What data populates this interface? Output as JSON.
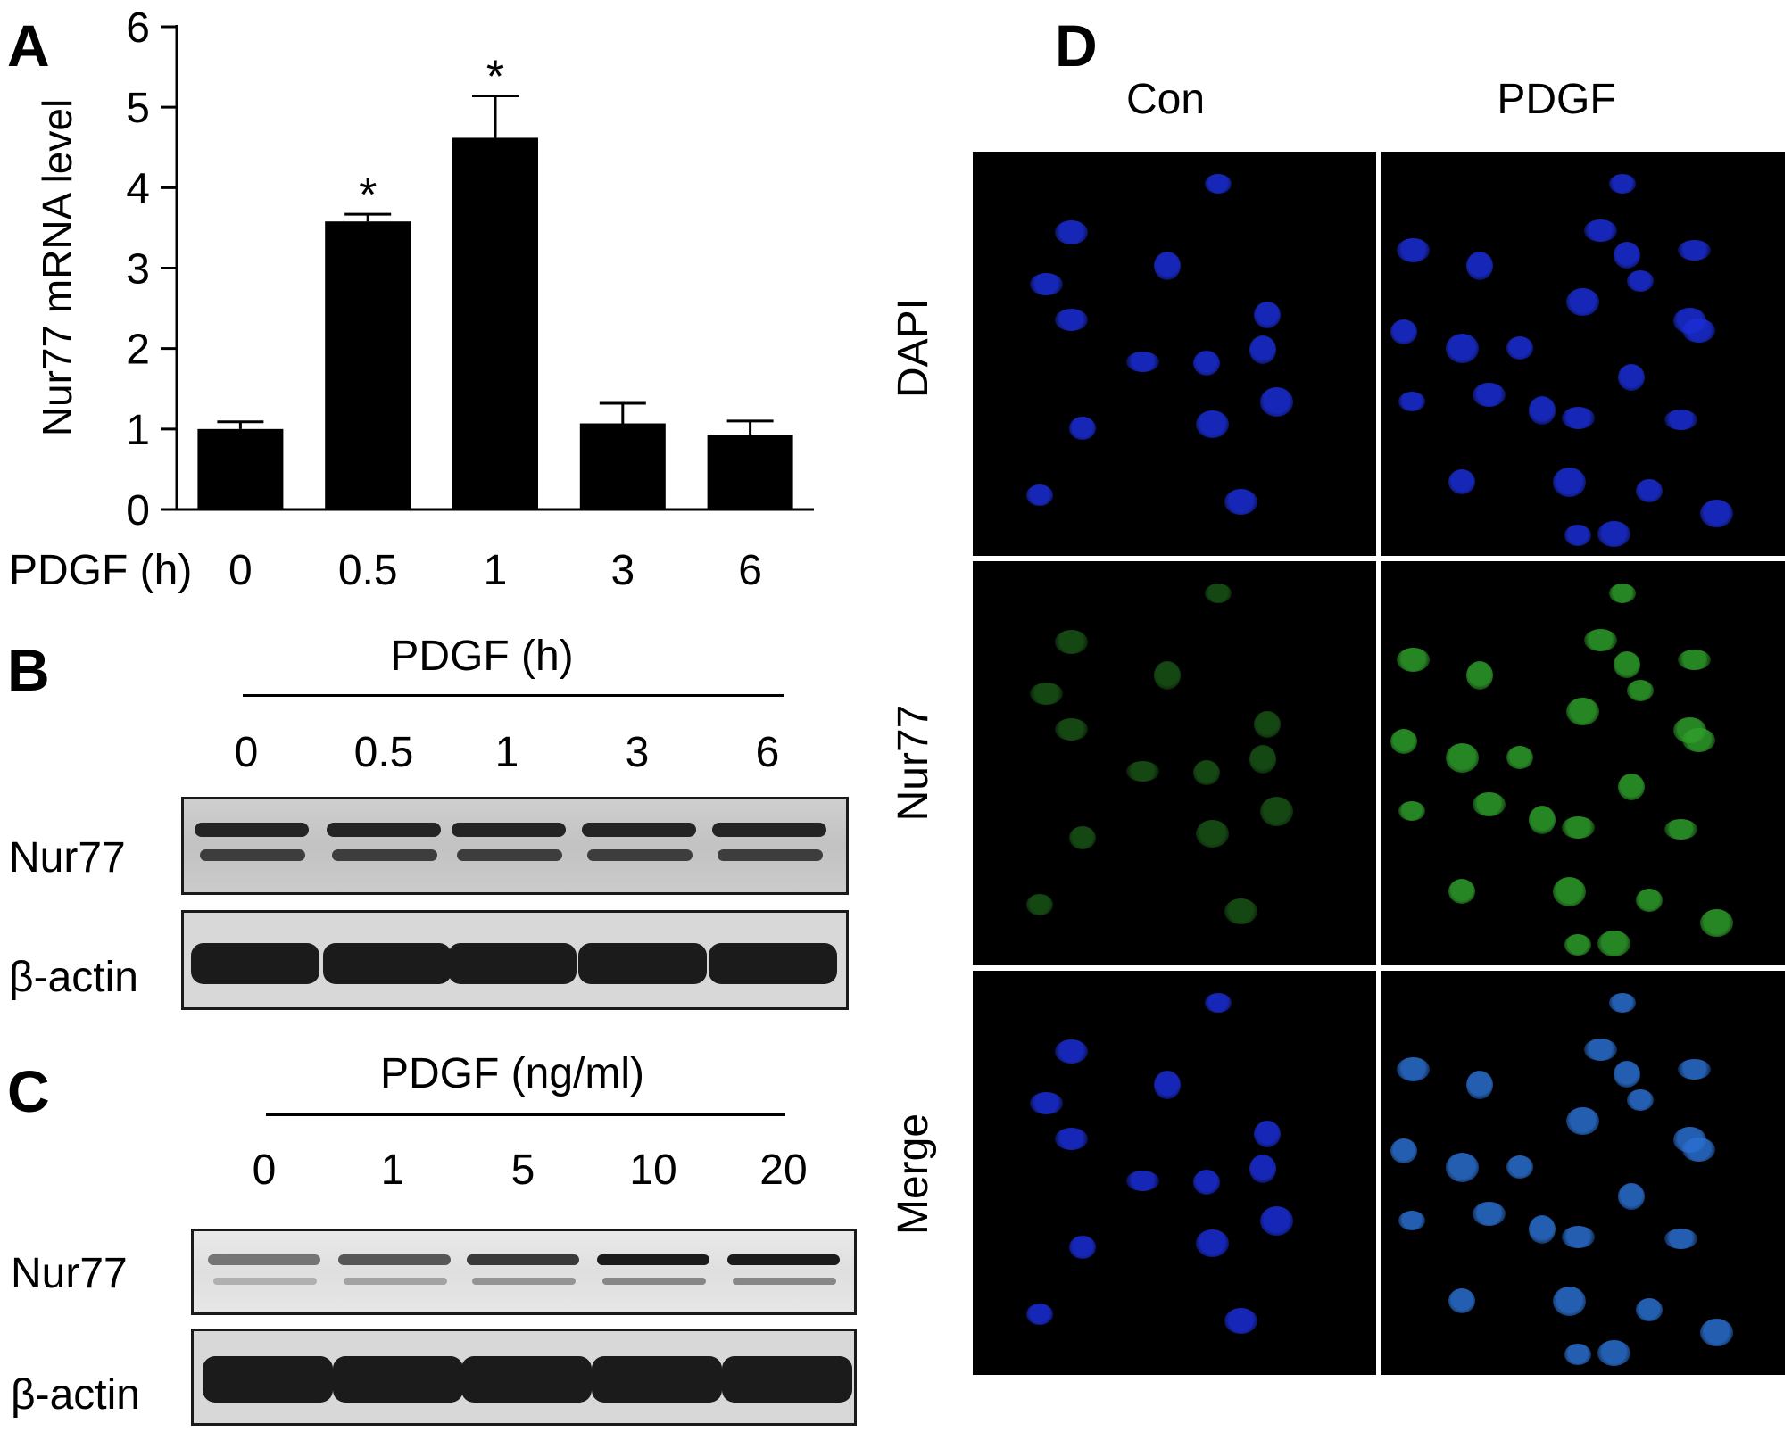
{
  "panels": {
    "a": "A",
    "b": "B",
    "c": "C",
    "d": "D"
  },
  "panel_a": {
    "x_prefix": "PDGF (h)",
    "asterisk": "*"
  },
  "chart_data": {
    "type": "bar",
    "title": "",
    "xlabel": "PDGF (h)",
    "ylabel": "Nur77 mRNA level",
    "categories": [
      "0",
      "0.5",
      "1",
      "3",
      "6"
    ],
    "values": [
      1.0,
      3.58,
      4.62,
      1.07,
      0.93
    ],
    "errors": [
      0.09,
      0.09,
      0.52,
      0.25,
      0.17
    ],
    "significant": [
      false,
      true,
      true,
      false,
      false
    ],
    "ylim": [
      0,
      6
    ],
    "yticks": [
      "0",
      "1",
      "2",
      "3",
      "4",
      "5",
      "6"
    ],
    "bar_color": "#000000",
    "grid": false
  },
  "panel_b": {
    "header": "PDGF (h)",
    "lanes": [
      "0",
      "0.5",
      "1",
      "3",
      "6"
    ],
    "rows": [
      "Nur77",
      "β-actin"
    ]
  },
  "panel_c": {
    "header": "PDGF (ng/ml)",
    "lanes": [
      "0",
      "1",
      "5",
      "10",
      "20"
    ],
    "rows": [
      "Nur77",
      "β-actin"
    ]
  },
  "panel_d": {
    "columns": [
      "Con",
      "PDGF"
    ],
    "rows": [
      "DAPI",
      "Nur77",
      "Merge"
    ],
    "colors": {
      "dapi": "#1a2dd6",
      "nur77": "#2e9e2a",
      "merge": "#2a6fd0"
    }
  }
}
